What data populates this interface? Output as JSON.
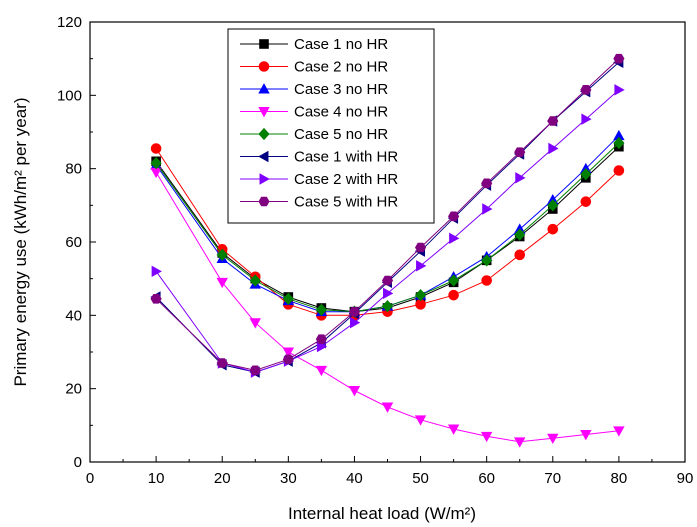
{
  "chart_data": {
    "type": "line",
    "xlabel": "Internal heat load (W/m²)",
    "ylabel": "Primary energy use (kWh/m² per year)",
    "xlim": [
      0,
      90
    ],
    "ylim": [
      0,
      120
    ],
    "xticks": [
      "0",
      "10",
      "20",
      "30",
      "40",
      "50",
      "60",
      "70",
      "80",
      "90"
    ],
    "yticks": [
      "0",
      "20",
      "40",
      "60",
      "80",
      "100",
      "120"
    ],
    "grid": false,
    "legend_position": "top-center",
    "x": [
      10,
      20,
      25,
      30,
      35,
      40,
      45,
      50,
      55,
      60,
      65,
      70,
      75,
      80
    ],
    "series": [
      {
        "name": "Case 1 no HR",
        "color": "#000000",
        "marker": "square",
        "values": [
          82,
          57,
          50,
          45,
          42,
          41,
          42,
          45,
          49,
          55,
          61.5,
          69,
          77.5,
          86
        ]
      },
      {
        "name": "Case 2 no HR",
        "color": "#ff0000",
        "marker": "circle",
        "values": [
          85.5,
          58,
          50.5,
          43,
          40,
          40,
          41,
          43,
          45.5,
          49.5,
          56.5,
          63.5,
          71,
          79.5
        ]
      },
      {
        "name": "Case 3 no HR",
        "color": "#0000ff",
        "marker": "triangle-up",
        "values": [
          81,
          55.5,
          48.5,
          44,
          41,
          41,
          42.5,
          45.5,
          50.5,
          56,
          63.5,
          71.5,
          80,
          89
        ]
      },
      {
        "name": "Case 4 no HR",
        "color": "#ff00ff",
        "marker": "triangle-down",
        "values": [
          79,
          49,
          38,
          30,
          25,
          19.5,
          15,
          11.5,
          9,
          7,
          5.5,
          6.5,
          7.5,
          8.5
        ]
      },
      {
        "name": "Case 5 no HR",
        "color": "#008000",
        "marker": "diamond",
        "values": [
          81.5,
          56.5,
          49.5,
          44.5,
          41.5,
          41,
          42.5,
          45.5,
          49.5,
          55,
          62,
          70,
          78.5,
          87
        ]
      },
      {
        "name": "Case 1 with HR",
        "color": "#000080",
        "marker": "triangle-left",
        "values": [
          45,
          26.5,
          24.5,
          27.5,
          32.5,
          40.5,
          49,
          57.5,
          66.5,
          75.5,
          84,
          93,
          101,
          109
        ]
      },
      {
        "name": "Case 2 with HR",
        "color": "#8000ff",
        "marker": "triangle-right",
        "values": [
          52,
          27,
          24.5,
          27.5,
          31.5,
          38,
          46,
          53.5,
          61,
          69,
          77.5,
          85.5,
          93.5,
          101.5
        ]
      },
      {
        "name": "Case 5 with HR",
        "color": "#800080",
        "marker": "hexagon",
        "values": [
          44.5,
          27,
          25,
          28,
          33.5,
          41,
          49.5,
          58.5,
          67,
          76,
          84.5,
          93,
          101.5,
          110
        ]
      }
    ]
  }
}
